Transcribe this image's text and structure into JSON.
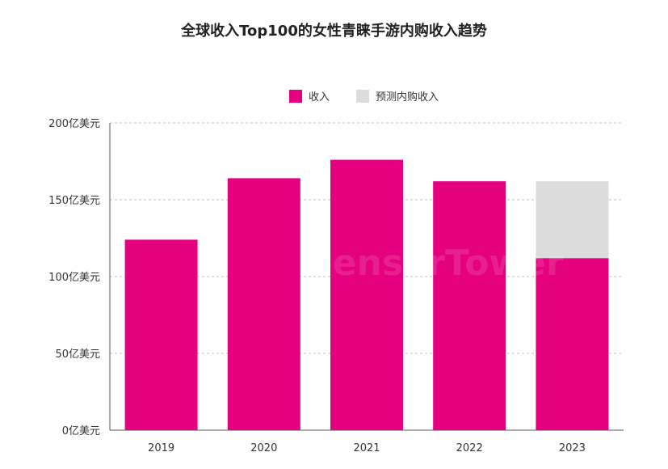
{
  "chart_data": {
    "type": "bar",
    "title": "全球收入Top100的女性青睐手游内购收入趋势",
    "categories": [
      "2019",
      "2020",
      "2021",
      "2022",
      "2023"
    ],
    "series": [
      {
        "name": "收入",
        "values": [
          124,
          164,
          176,
          162,
          112
        ],
        "color": "#e4007f"
      },
      {
        "name": "预测内购收入",
        "values": [
          0,
          0,
          0,
          0,
          50
        ],
        "color": "#dcdcdc"
      }
    ],
    "stacked": true,
    "ylim": [
      0,
      200
    ],
    "yticks": [
      0,
      50,
      100,
      150,
      200
    ],
    "ytick_labels": [
      "0亿美元",
      "50亿美元",
      "100亿美元",
      "150亿美元",
      "200亿美元"
    ],
    "grid": true,
    "legend": "top-center"
  },
  "watermark": "SensorTower"
}
